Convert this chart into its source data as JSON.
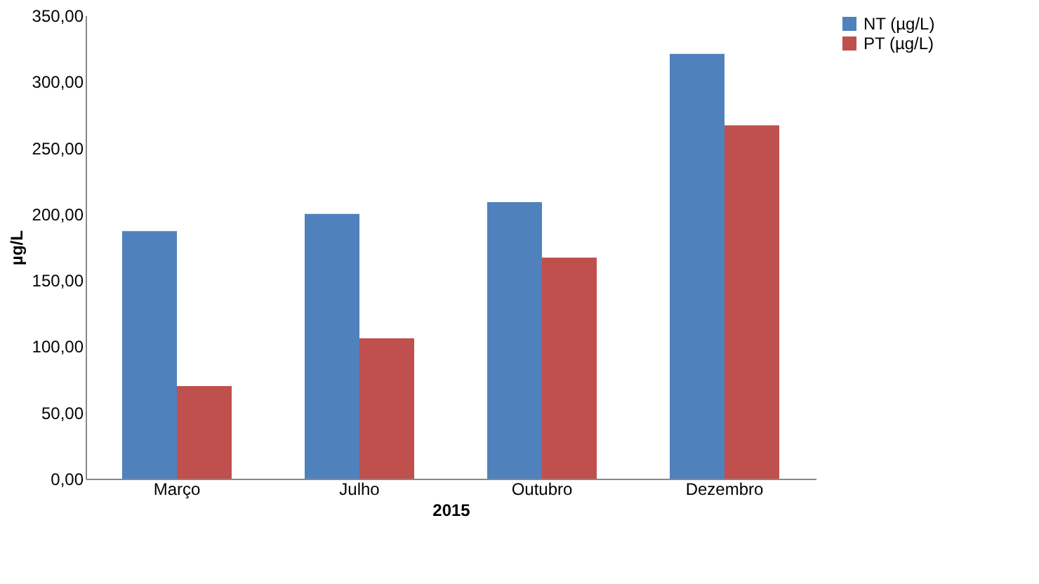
{
  "chart_data": {
    "type": "bar",
    "xlabel": "2015",
    "ylabel": "µg/L",
    "categories": [
      "Março",
      "Julho",
      "Outubro",
      "Dezembro"
    ],
    "series": [
      {
        "name": "NT (µg/L)",
        "color": "#4f81bd",
        "values": [
          187,
          200,
          209,
          321
        ]
      },
      {
        "name": "PT (µg/L)",
        "color": "#c0504d",
        "values": [
          70,
          106,
          167,
          267
        ]
      }
    ],
    "ylim": [
      0,
      350
    ],
    "yticks": [
      {
        "value": 0,
        "label": "0,00"
      },
      {
        "value": 50,
        "label": "50,00"
      },
      {
        "value": 100,
        "label": "100,00"
      },
      {
        "value": 150,
        "label": "150,00"
      },
      {
        "value": 200,
        "label": "200,00"
      },
      {
        "value": 250,
        "label": "250,00"
      },
      {
        "value": 300,
        "label": "300,00"
      },
      {
        "value": 350,
        "label": "350,00"
      }
    ],
    "grid": false,
    "legend": "right"
  }
}
